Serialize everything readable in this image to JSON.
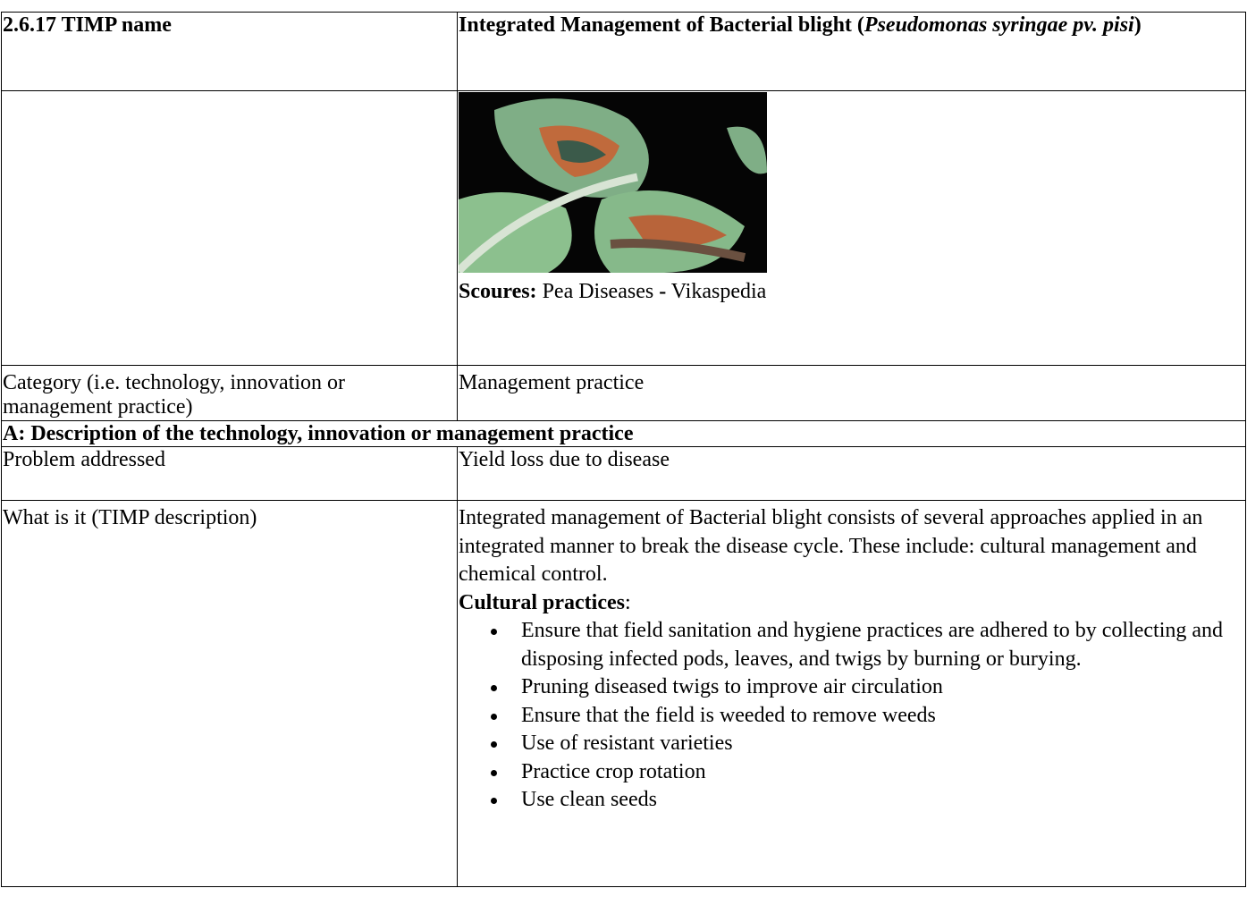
{
  "header": {
    "label": "2.6.17 TIMP name",
    "title_start": "Integrated Management of Bacterial blight (",
    "title_italic": "Pseudomonas syringae pv. pisi",
    "title_end": ")"
  },
  "image_row": {
    "caption": {
      "source_label": "Scoures:",
      "source_name": "Pea Diseases",
      "separator": "-",
      "publisher": "Vikaspedia"
    }
  },
  "category": {
    "label": "Category (i.e. technology, innovation or management practice)",
    "value": "Management practice"
  },
  "section": {
    "title": "A: Description of the technology, innovation or management practice"
  },
  "problem": {
    "label": "Problem addressed",
    "value": "Yield loss due to disease"
  },
  "description": {
    "label": "What is it (TIMP description)",
    "intro": "Integrated management of Bacterial blight consists of several approaches applied in an integrated manner to break the disease cycle. These include: cultural management and chemical control.",
    "subheading": "Cultural practices",
    "subheading_end": ":",
    "bullets": [
      "Ensure that field sanitation and hygiene practices are adhered to by collecting and disposing infected pods, leaves, and twigs by burning or burying.",
      "Pruning diseased twigs to improve air circulation",
      "Ensure that the field is weeded to remove weeds",
      "Use of resistant varieties",
      "Practice crop rotation",
      "Use clean seeds"
    ]
  }
}
